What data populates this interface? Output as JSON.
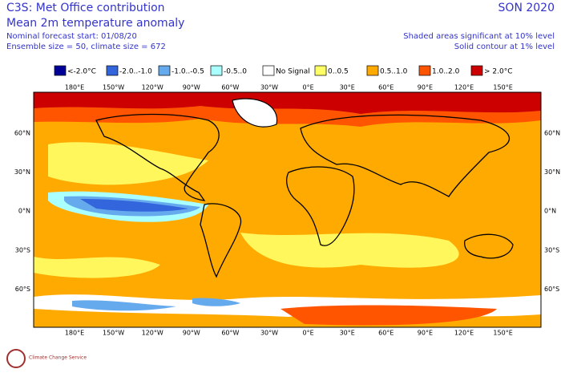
{
  "header": {
    "left": [
      "C3S: Met Office contribution",
      "Mean 2m temperature anomaly",
      "Nominal forecast start: 01/08/20",
      "Ensemble size = 50, climate size = 672"
    ],
    "right": [
      "SON 2020",
      "Shaded areas significant at 10% level",
      "Solid contour at 1% level"
    ]
  },
  "legend": [
    {
      "label": "<-2.0°C",
      "color": "#000099"
    },
    {
      "label": "-2.0..-1.0",
      "color": "#3366dd"
    },
    {
      "label": "-1.0..-0.5",
      "color": "#66aaee"
    },
    {
      "label": "-0.5..0",
      "color": "#aaffff"
    },
    {
      "label": "No Signal",
      "color": "#ffffff"
    },
    {
      "label": "0..0.5",
      "color": "#ffff66"
    },
    {
      "label": "0.5..1.0",
      "color": "#ffaa00"
    },
    {
      "label": "1.0..2.0",
      "color": "#ff5500"
    },
    {
      "label": "> 2.0°C",
      "color": "#cc0000"
    }
  ],
  "map": {
    "lon_labels": [
      "180°E",
      "150°W",
      "120°W",
      "90°W",
      "60°W",
      "30°W",
      "0°E",
      "30°E",
      "60°E",
      "90°E",
      "120°E",
      "150°E"
    ],
    "lat_labels": [
      "60°N",
      "30°N",
      "0°N",
      "30°S",
      "60°S"
    ]
  },
  "logo": "Climate Change Service"
}
